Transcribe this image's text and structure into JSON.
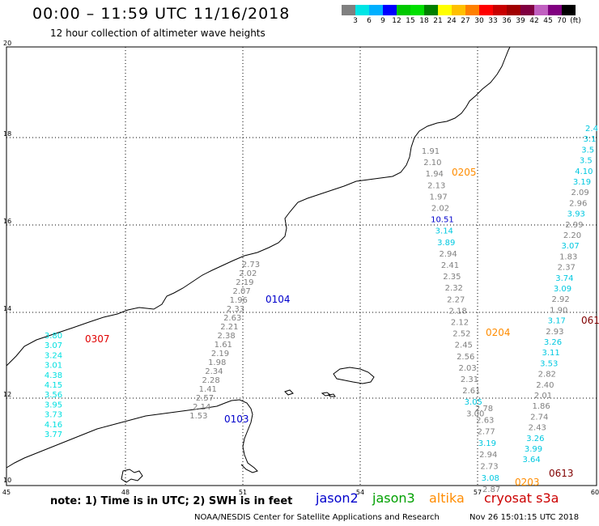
{
  "header": {
    "title": "00:00 – 11:59 UTC 11/16/2018",
    "subtitle": "12 hour collection of altimeter wave heights"
  },
  "legend": {
    "colors": [
      "#808080",
      "#00e5e5",
      "#00b0ff",
      "#0000ff",
      "#00c800",
      "#00e000",
      "#008000",
      "#ffff00",
      "#ffc000",
      "#ff8000",
      "#ff0000",
      "#c80000",
      "#a00000",
      "#800040",
      "#c060c0",
      "#800080",
      "#000000"
    ],
    "labels": [
      "3",
      "6",
      "9",
      "12",
      "15",
      "18",
      "21",
      "24",
      "27",
      "30",
      "33",
      "36",
      "39",
      "42",
      "45",
      "70"
    ],
    "unit": "(ft)"
  },
  "axes": {
    "lon_labels": [
      "45",
      "48",
      "51",
      "54",
      "57",
      "60"
    ],
    "lat_labels": [
      "20",
      "18",
      "16",
      "14",
      "12",
      "10"
    ]
  },
  "tracks": [
    {
      "satellite": "cryosat s3a",
      "color": "#00e0e0",
      "pass": "0307",
      "pass_color": "#e00000",
      "values": [
        "3.80",
        "3.07",
        "3.24",
        "3.01",
        "4.38",
        "4.15",
        "3.56",
        "3.95",
        "3.73",
        "4.16",
        "3.77"
      ]
    },
    {
      "satellite": "jason2",
      "color": "#808080",
      "pass": "0104",
      "pass_color": "#0000cc",
      "values": [
        "2.73",
        "2.02",
        "2.19",
        "2.07",
        "1.96",
        "2.33",
        "2.63",
        "2.21",
        "2.38",
        "1.61",
        "2.19",
        "1.98",
        "2.34",
        "2.28",
        "1.41",
        "2.57",
        "2.14",
        "1.53"
      ]
    },
    {
      "satellite": "jason2",
      "color": "#808080",
      "pass": "0103",
      "pass_color": "#0000cc",
      "values": []
    },
    {
      "satellite": "altika",
      "color": "#808080",
      "pass": "0205",
      "pass_color": "#ff8c00",
      "values": [
        "1.91",
        "2.10",
        "1.94",
        "2.13",
        "1.97",
        "2.02",
        "10.51",
        "3.14",
        "3.89",
        "2.94",
        "2.41",
        "2.35",
        "2.32",
        "2.27",
        "2.18",
        "2.12",
        "2.52",
        "2.45",
        "2.56",
        "2.03",
        "2.31",
        "2.61",
        "3.05",
        "3.00"
      ]
    },
    {
      "satellite": "altika",
      "color": "#808080",
      "pass": "0204",
      "pass_color": "#ff8c00",
      "values": [
        "2.78",
        "2.63",
        "2.77",
        "3.19",
        "2.94",
        "2.73",
        "3.08",
        "2.87"
      ]
    },
    {
      "satellite": "altika",
      "color": "#808080",
      "pass": "0203",
      "pass_color": "#ff8c00",
      "values": []
    },
    {
      "satellite": "cryosat s3a",
      "color": "#808080",
      "pass": "0613",
      "pass_color": "#800000",
      "values": [
        "2.4",
        "3.1",
        "3.5",
        "3.5",
        "4.10",
        "3.19",
        "2.09",
        "2.96",
        "3.93",
        "2.99",
        "2.20",
        "3.07",
        "1.83",
        "2.37",
        "3.74",
        "3.09",
        "2.92",
        "1.90",
        "3.17",
        "2.93",
        "3.26",
        "3.11",
        "3.53",
        "2.82",
        "2.40",
        "2.01",
        "1.86",
        "2.74",
        "2.43",
        "3.26",
        "3.99",
        "3.64"
      ]
    },
    {
      "satellite": "cryosat s3a",
      "color": "#808080",
      "pass": "061",
      "pass_color": "#800000",
      "values": []
    }
  ],
  "footer": {
    "note": "note: 1) Time is in UTC; 2) SWH is in feet",
    "satellites": [
      {
        "name": "jason2",
        "color": "#0000cc"
      },
      {
        "name": "jason3",
        "color": "#00a000"
      },
      {
        "name": "altika",
        "color": "#ff8c00"
      },
      {
        "name": "cryosat s3a",
        "color": "#cc0000"
      }
    ],
    "credit": "NOAA/NESDIS Center for Satellite Applications and Research",
    "timestamp": "Nov 26 15:01:15 UTC 2018"
  }
}
